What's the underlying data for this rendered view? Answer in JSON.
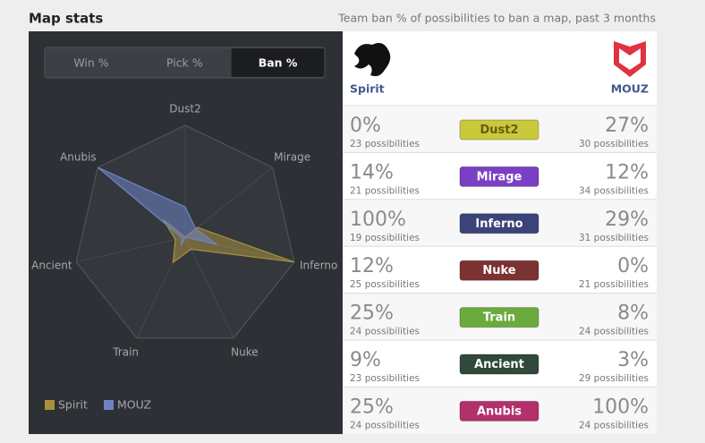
{
  "header": {
    "title": "Map stats",
    "subtitle": "Team ban % of possibilities to ban a map, past 3 months"
  },
  "tabs": [
    "Win %",
    "Pick %",
    "Ban %"
  ],
  "active_tab": 2,
  "chart_data": {
    "type": "radar",
    "categories": [
      "Dust2",
      "Mirage",
      "Inferno",
      "Nuke",
      "Train",
      "Ancient",
      "Anubis"
    ],
    "series": [
      {
        "name": "Spirit",
        "color": "#a8913e",
        "values": [
          0,
          14,
          100,
          12,
          25,
          9,
          25
        ],
        "value_labels": [
          "0%",
          "14%",
          "100%",
          "12%",
          "25%",
          "9%",
          "25%"
        ]
      },
      {
        "name": "MOUZ",
        "color": "#6d84c4",
        "values": [
          27,
          12,
          29,
          0,
          8,
          3,
          100
        ],
        "value_labels": [
          "27%",
          "12%",
          "29%",
          "0%",
          "8%",
          "3%",
          "100%"
        ]
      }
    ],
    "ylim": [
      0,
      100
    ],
    "yticks": [
      20,
      40,
      60,
      80,
      100
    ],
    "grid": true,
    "legend": "bottom-left"
  },
  "table": {
    "teams": [
      "Spirit",
      "MOUZ"
    ],
    "rows": [
      {
        "color": "#c9c93c",
        "text_color": "#6b5a10",
        "left": "23 possibilities",
        "right": "30 possibilities"
      },
      {
        "color": "#7a3fc4",
        "text_color": "#ffffff",
        "left": "21 possibilities",
        "right": "34 possibilities"
      },
      {
        "color": "#3b4478",
        "text_color": "#ffffff",
        "left": "19 possibilities",
        "right": "31 possibilities"
      },
      {
        "color": "#7c3230",
        "text_color": "#ffffff",
        "left": "25 possibilities",
        "right": "21 possibilities"
      },
      {
        "color": "#6bab3c",
        "text_color": "#ffffff",
        "left": "24 possibilities",
        "right": "24 possibilities"
      },
      {
        "color": "#2f4a3a",
        "text_color": "#ffffff",
        "left": "23 possibilities",
        "right": "29 possibilities"
      },
      {
        "color": "#b3306c",
        "text_color": "#ffffff",
        "left": "24 possibilities",
        "right": "24 possibilities"
      }
    ]
  }
}
